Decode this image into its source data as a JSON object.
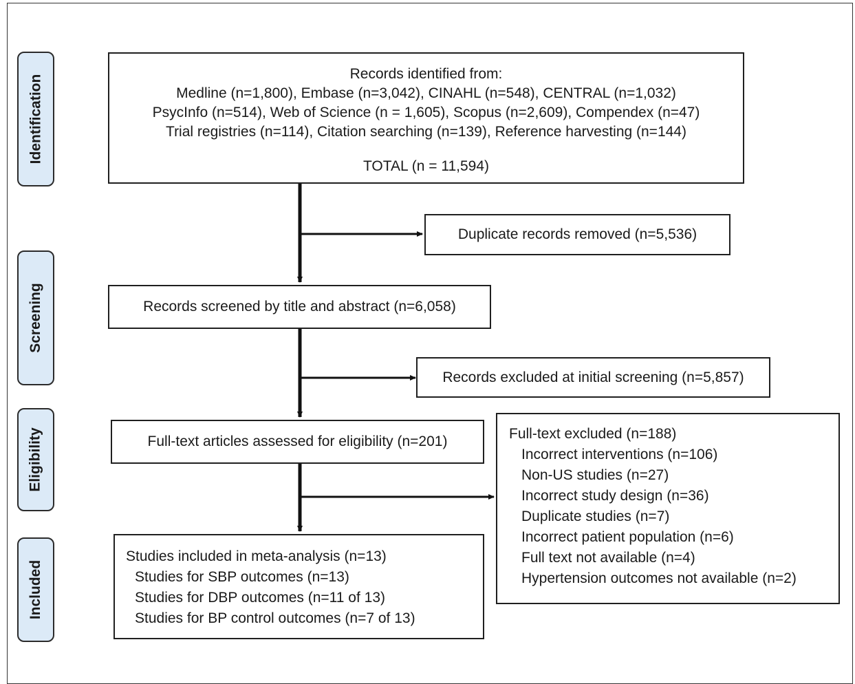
{
  "phases": {
    "identification": "Identification",
    "screening": "Screening",
    "eligibility": "Eligibility",
    "included": "Included"
  },
  "identified": {
    "heading": "Records identified from:",
    "line1": "Medline (n=1,800), Embase (n=3,042), CINAHL (n=548), CENTRAL (n=1,032)",
    "line2": "PsycInfo (n=514), Web of Science (n = 1,605), Scopus (n=2,609), Compendex (n=47)",
    "line3": "Trial registries (n=114), Citation searching (n=139), Reference harvesting (n=144)",
    "total": "TOTAL (n = 11,594)"
  },
  "duplicates": "Duplicate records removed (n=5,536)",
  "screened": "Records screened by title and abstract (n=6,058)",
  "excluded_screening": "Records excluded at initial screening (n=5,857)",
  "fulltext_assessed": "Full-text articles assessed for eligibility (n=201)",
  "fulltext_excluded": {
    "heading": "Full-text excluded (n=188)",
    "items": [
      "Incorrect interventions (n=106)",
      "Non-US studies (n=27)",
      "Incorrect study design (n=36)",
      "Duplicate studies (n=7)",
      "Incorrect patient population (n=6)",
      "Full text not available (n=4)",
      "Hypertension outcomes not available (n=2)"
    ]
  },
  "included": {
    "heading": "Studies included in meta-analysis (n=13)",
    "items": [
      "Studies for SBP outcomes (n=13)",
      "Studies for DBP outcomes (n=11 of 13)",
      "Studies for BP control outcomes (n=7 of 13)"
    ]
  }
}
